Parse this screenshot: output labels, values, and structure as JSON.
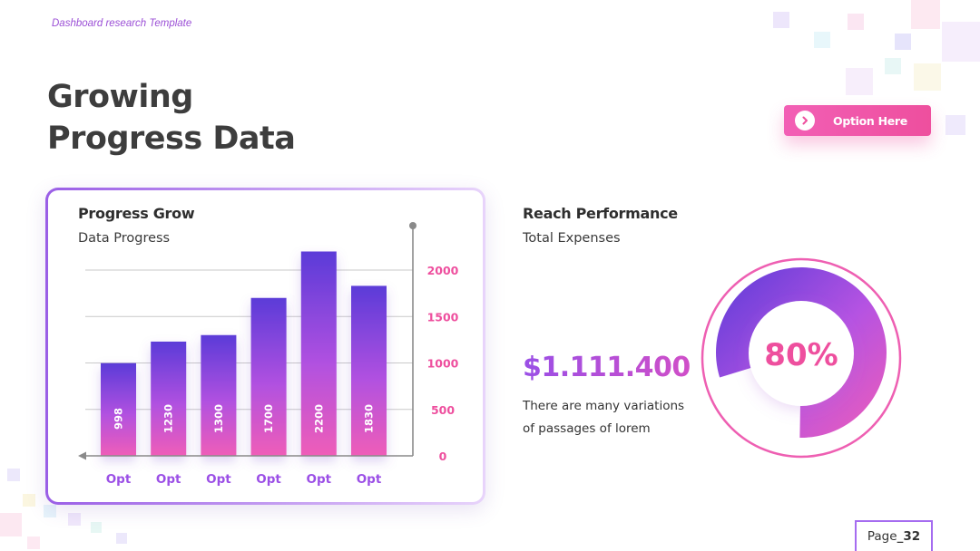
{
  "header": {
    "tag": "Dashboard research Template",
    "title_line1": "Growing",
    "title_line2": "Progress Data"
  },
  "option_button": {
    "label": "Option Here",
    "icon": "chevron-right-icon"
  },
  "card_progress": {
    "title": "Progress Grow",
    "subtitle": "Data Progress"
  },
  "card_reach": {
    "title": "Reach Performance",
    "subtitle": "Total Expenses",
    "value": "$1.111.400",
    "description": "There are many variations of passages of lorem",
    "gauge_label": "80%"
  },
  "page": {
    "label": "Page",
    "number": "_32"
  },
  "colors": {
    "accent_purple": "#9b4fe6",
    "accent_pink": "#ee4f9e",
    "bar_top": "#5b3bd8",
    "bar_bottom": "#ef5db8"
  },
  "chart_data": [
    {
      "type": "bar",
      "categories": [
        "Opt",
        "Opt",
        "Opt",
        "Opt",
        "Opt",
        "Opt"
      ],
      "values": [
        998,
        1230,
        1300,
        1700,
        2200,
        1830
      ],
      "value_labels": [
        "998",
        "1230",
        "1300",
        "1700",
        "2200",
        "1830"
      ],
      "y_ticks": [
        "2000",
        "1500",
        "1000",
        "500",
        "0"
      ],
      "y_tick_values": [
        2000,
        1500,
        1000,
        500,
        0
      ],
      "ylim": [
        0,
        2000
      ],
      "axis_position": "right",
      "grid": true
    },
    {
      "type": "pie",
      "values": [
        80,
        20
      ],
      "label": "80%"
    }
  ]
}
